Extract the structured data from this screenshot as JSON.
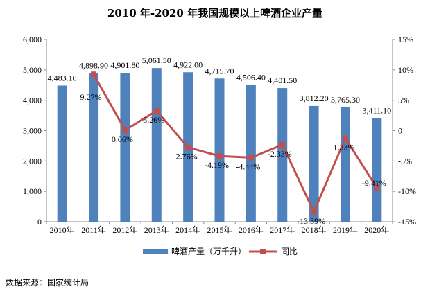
{
  "chart_data": {
    "type": "bar",
    "title": "2010 年-2020 年我国规模以上啤酒企业产量",
    "categories": [
      "2010年",
      "2011年",
      "2012年",
      "2013年",
      "2014年",
      "2015年",
      "2016年",
      "2017年",
      "2018年",
      "2019年",
      "2020年"
    ],
    "series": [
      {
        "name": "啤酒产量（万千升）",
        "type": "bar",
        "axis": "left",
        "color": "#4F81BD",
        "values": [
          4483.1,
          4898.9,
          4901.8,
          5061.5,
          4922.0,
          4715.7,
          4506.4,
          4401.5,
          3812.2,
          3765.3,
          3411.1
        ],
        "labels": [
          "4,483.10",
          "4,898.90",
          "4,901.80",
          "5,061.50",
          "4,922.00",
          "4,715.70",
          "4,506.40",
          "4,401.50",
          "3,812.20",
          "3,765.30",
          "3,411.10"
        ]
      },
      {
        "name": "同比",
        "type": "line",
        "axis": "right",
        "color": "#C0504D",
        "values": [
          null,
          9.27,
          0.06,
          3.26,
          -2.76,
          -4.19,
          -4.44,
          -2.33,
          -13.39,
          -1.23,
          -9.41
        ],
        "labels": [
          null,
          "9.27%",
          "0.06%",
          "3.26%",
          "-2.76%",
          "-4.19%",
          "-4.44%",
          "-2.33%",
          "-13.39%",
          "-1.23%",
          "-9.41%"
        ]
      }
    ],
    "y_left": {
      "ylim": [
        0,
        6000
      ],
      "ticks": [
        "0",
        "1,000",
        "2,000",
        "3,000",
        "4,000",
        "5,000",
        "6,000"
      ]
    },
    "y_right": {
      "ylim": [
        -15,
        15
      ],
      "ticks": [
        "-15%",
        "-10%",
        "-5%",
        "0",
        "5%",
        "10%",
        "15%"
      ]
    },
    "grid": false,
    "legend_position": "bottom"
  },
  "source_text": "数据来源：国家统计局"
}
